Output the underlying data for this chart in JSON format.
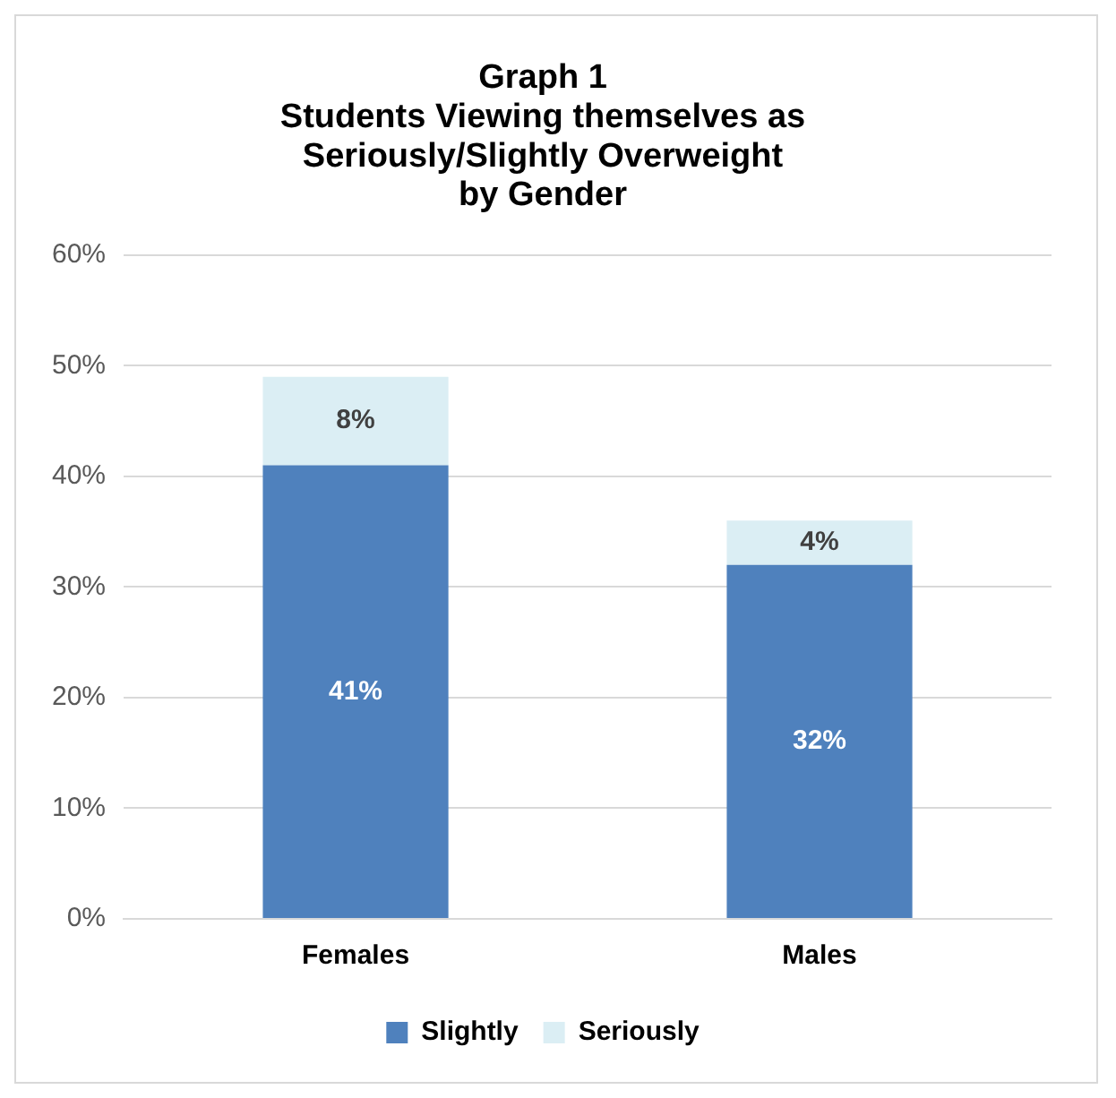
{
  "chart_data": {
    "type": "bar",
    "title": "Graph 1\nStudents Viewing themselves as\nSeriously/Slightly Overweight\nby Gender",
    "categories": [
      "Females",
      "Males"
    ],
    "stacked": true,
    "series": [
      {
        "name": "Slightly",
        "color": "#4f81bd",
        "values": [
          41,
          32
        ],
        "value_labels": [
          "41%",
          "32%"
        ]
      },
      {
        "name": "Seriously",
        "color": "#dbeef4",
        "values": [
          8,
          4
        ],
        "value_labels": [
          "8%",
          "4%"
        ]
      }
    ],
    "ylim": [
      0,
      60
    ],
    "yticks": [
      {
        "value": 0,
        "label": "0%"
      },
      {
        "value": 10,
        "label": "10%"
      },
      {
        "value": 20,
        "label": "20%"
      },
      {
        "value": 30,
        "label": "30%"
      },
      {
        "value": 40,
        "label": "40%"
      },
      {
        "value": 50,
        "label": "50%"
      },
      {
        "value": 60,
        "label": "60%"
      }
    ],
    "grid": "y",
    "legend": "bottom"
  }
}
